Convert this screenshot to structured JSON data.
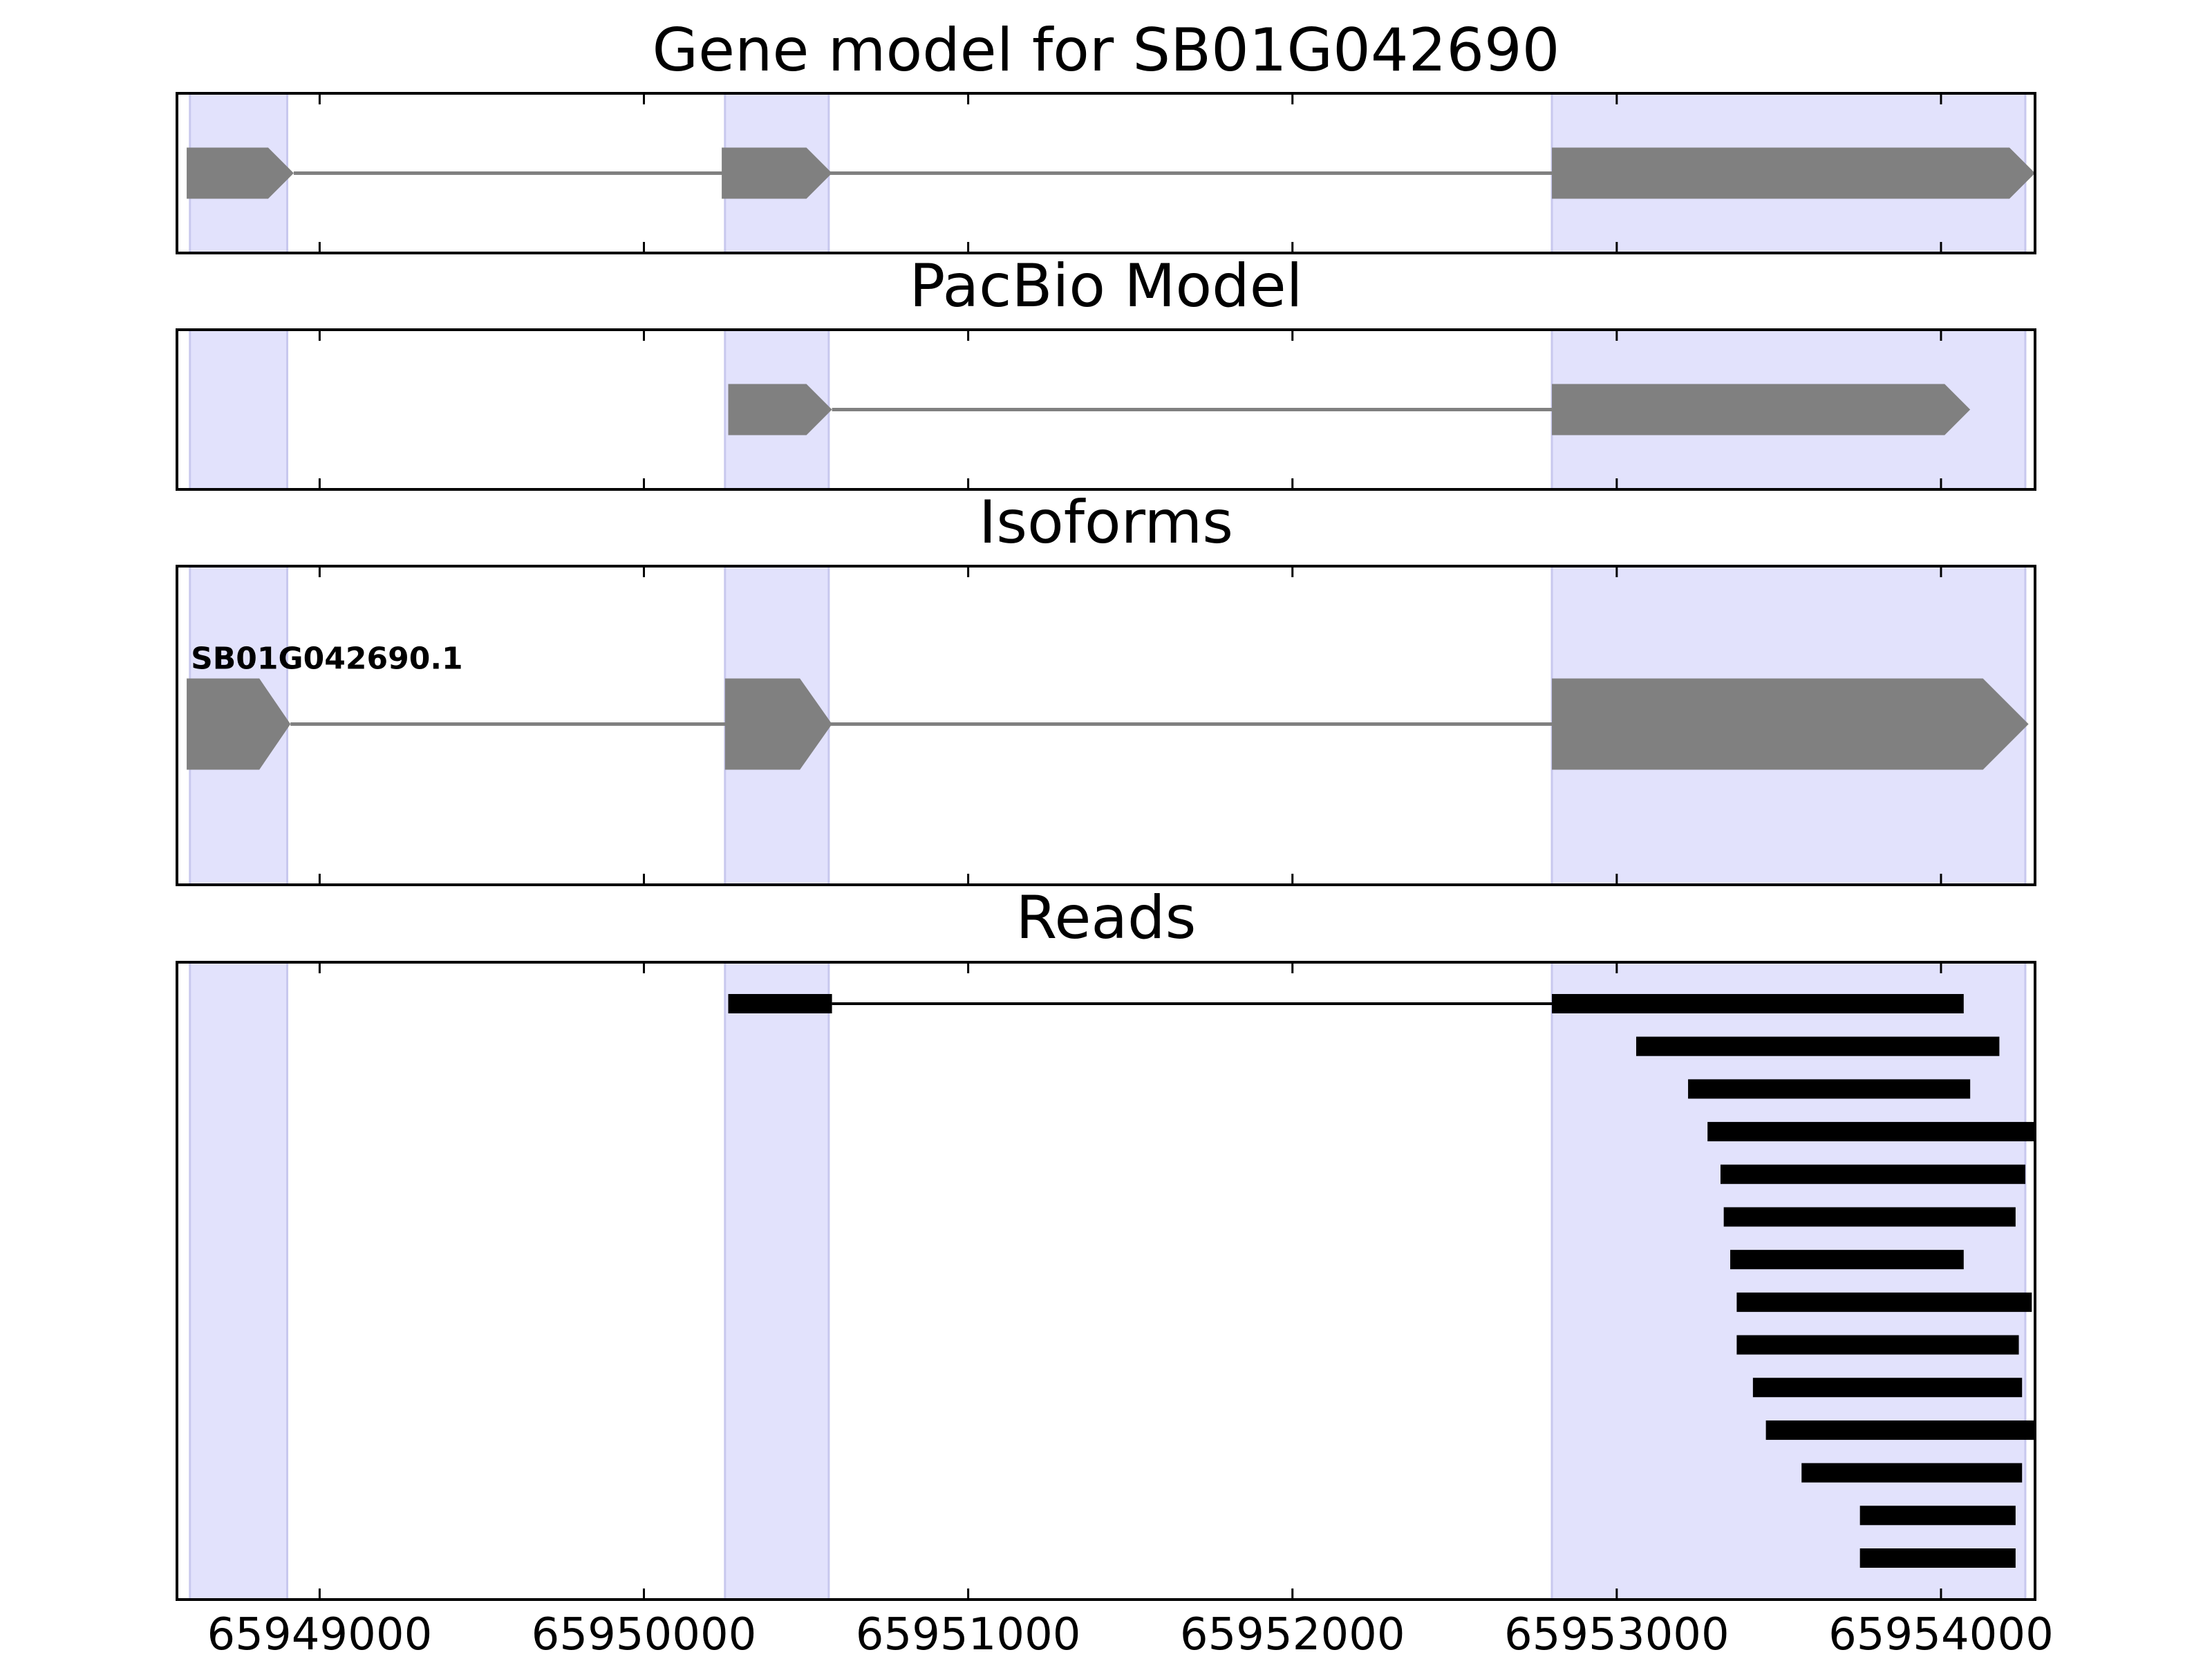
{
  "chart_data": {
    "type": "gene-track",
    "xlim": [
      65948560,
      65954290
    ],
    "xticks": [
      65949000,
      65950000,
      65951000,
      65952000,
      65953000,
      65954000
    ],
    "xtick_labels": [
      "65949000",
      "65950000",
      "65951000",
      "65952000",
      "65953000",
      "65954000"
    ],
    "highlight_regions": [
      [
        65948600,
        65948900
      ],
      [
        65950250,
        65950570
      ],
      [
        65952800,
        65954260
      ]
    ],
    "colors": {
      "highlight": "#e2e2fc",
      "highlight_edge": "#c8c8ee",
      "feature": "#808080",
      "read": "#000000",
      "axes": "#000000"
    },
    "panels": [
      {
        "id": "gene-model",
        "title": "Gene model for SB01G042690",
        "features": [
          {
            "label": "",
            "exons": [
              [
                65948590,
                65948920
              ],
              [
                65950240,
                65950580
              ],
              [
                65952800,
                65954290
              ]
            ]
          }
        ]
      },
      {
        "id": "pacbio-model",
        "title": "PacBio Model",
        "features": [
          {
            "label": "",
            "exons": [
              [
                65950260,
                65950580
              ],
              [
                65952800,
                65954090
              ]
            ]
          }
        ]
      },
      {
        "id": "isoforms",
        "title": "Isoforms",
        "features": [
          {
            "label": "SB01G042690.1",
            "exons": [
              [
                65948590,
                65948910
              ],
              [
                65950250,
                65950580
              ],
              [
                65952800,
                65954270
              ]
            ]
          }
        ]
      },
      {
        "id": "reads",
        "title": "Reads",
        "reads": [
          {
            "blocks": [
              [
                65950260,
                65950580
              ],
              [
                65952800,
                65954070
              ]
            ]
          },
          {
            "blocks": [
              [
                65953060,
                65954180
              ]
            ]
          },
          {
            "blocks": [
              [
                65953220,
                65954090
              ]
            ]
          },
          {
            "blocks": [
              [
                65953280,
                65954300
              ]
            ]
          },
          {
            "blocks": [
              [
                65953320,
                65954260
              ]
            ]
          },
          {
            "blocks": [
              [
                65953330,
                65954230
              ]
            ]
          },
          {
            "blocks": [
              [
                65953350,
                65954070
              ]
            ]
          },
          {
            "blocks": [
              [
                65953370,
                65954280
              ]
            ]
          },
          {
            "blocks": [
              [
                65953370,
                65954240
              ]
            ]
          },
          {
            "blocks": [
              [
                65953420,
                65954250
              ]
            ]
          },
          {
            "blocks": [
              [
                65953460,
                65954300
              ]
            ]
          },
          {
            "blocks": [
              [
                65953570,
                65954250
              ]
            ]
          },
          {
            "blocks": [
              [
                65953750,
                65954230
              ]
            ]
          },
          {
            "blocks": [
              [
                65953750,
                65954230
              ]
            ]
          }
        ]
      }
    ]
  }
}
